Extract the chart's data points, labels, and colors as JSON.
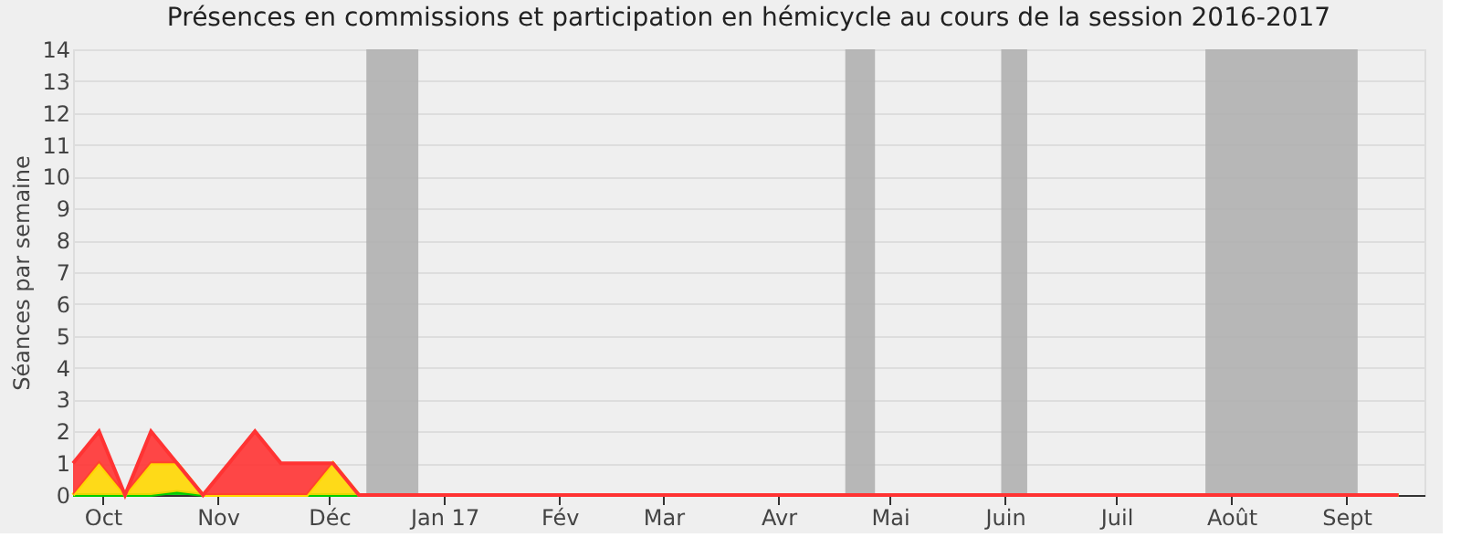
{
  "chart_data": {
    "type": "area",
    "title": "Présences en commissions et participation en hémicycle au cours de la session 2016-2017",
    "ylabel": "Séances par semaine",
    "x": [
      "2016-09-23",
      "2016-09-30",
      "2016-10-07",
      "2016-10-14",
      "2016-10-21",
      "2016-10-28",
      "2016-11-04",
      "2016-11-11",
      "2016-11-18",
      "2016-11-25",
      "2016-12-02",
      "2016-12-09",
      "2016-12-16",
      "2016-12-23",
      "2016-12-30",
      "2017-01-06",
      "2017-01-13",
      "2017-01-20",
      "2017-01-27",
      "2017-02-03",
      "2017-02-10",
      "2017-02-17",
      "2017-02-24",
      "2017-03-03",
      "2017-03-10",
      "2017-03-17",
      "2017-03-24",
      "2017-03-31",
      "2017-04-07",
      "2017-04-14",
      "2017-04-21",
      "2017-04-28",
      "2017-05-05",
      "2017-05-12",
      "2017-05-19",
      "2017-05-26",
      "2017-06-02",
      "2017-06-09",
      "2017-06-16",
      "2017-06-23",
      "2017-06-30",
      "2017-07-07",
      "2017-07-14",
      "2017-07-21",
      "2017-07-28",
      "2017-08-04",
      "2017-08-11",
      "2017-08-18",
      "2017-08-25",
      "2017-09-01",
      "2017-09-08",
      "2017-09-15"
    ],
    "stacked": true,
    "series": [
      {
        "color": "#00cc00",
        "values": [
          0,
          0,
          0,
          0,
          0.1,
          0,
          0,
          0,
          0,
          0,
          0,
          0,
          0,
          0,
          0,
          0,
          0,
          0,
          0,
          0,
          0,
          0,
          0,
          0,
          0,
          0,
          0,
          0,
          0,
          0,
          0,
          0,
          0,
          0,
          0,
          0,
          0,
          0,
          0,
          0,
          0,
          0,
          0,
          0,
          0,
          0,
          0,
          0,
          0,
          0,
          0,
          0
        ]
      },
      {
        "color": "#ffd700",
        "values": [
          0,
          1,
          0,
          1,
          0.9,
          0,
          0,
          0,
          0,
          0,
          1,
          0,
          0,
          0,
          0,
          0,
          0,
          0,
          0,
          0,
          0,
          0,
          0,
          0,
          0,
          0,
          0,
          0,
          0,
          0,
          0,
          0,
          0,
          0,
          0,
          0,
          0,
          0,
          0,
          0,
          0,
          0,
          0,
          0,
          0,
          0,
          0,
          0,
          0,
          0,
          0,
          0
        ]
      },
      {
        "color": "#ff3333",
        "values": [
          1,
          1,
          0,
          1,
          0,
          0,
          1,
          2,
          1,
          1,
          0,
          0,
          0,
          0,
          0,
          0,
          0,
          0,
          0,
          0,
          0,
          0,
          0,
          0,
          0,
          0,
          0,
          0,
          0,
          0,
          0,
          0,
          0,
          0,
          0,
          0,
          0,
          0,
          0,
          0,
          0,
          0,
          0,
          0,
          0,
          0,
          0,
          0,
          0,
          0,
          0,
          0
        ]
      }
    ],
    "bands": [
      {
        "axis": "x",
        "from": "2016-12-11",
        "to": "2016-12-25",
        "color": "#b0b0b0"
      },
      {
        "axis": "x",
        "from": "2017-04-19",
        "to": "2017-04-27",
        "color": "#b0b0b0"
      },
      {
        "axis": "x",
        "from": "2017-05-31",
        "to": "2017-06-07",
        "color": "#b0b0b0"
      },
      {
        "axis": "x",
        "from": "2017-07-25",
        "to": "2017-09-04",
        "color": "#b0b0b0"
      }
    ],
    "xlim": [
      "2016-09-23",
      "2017-09-22"
    ],
    "xticks": [
      {
        "value": "2016-10-01",
        "label": "Oct"
      },
      {
        "value": "2016-11-01",
        "label": "Nov"
      },
      {
        "value": "2016-12-01",
        "label": "Déc"
      },
      {
        "value": "2017-01-01",
        "label": "Jan 17"
      },
      {
        "value": "2017-02-01",
        "label": "Fév"
      },
      {
        "value": "2017-03-01",
        "label": "Mar"
      },
      {
        "value": "2017-04-01",
        "label": "Avr"
      },
      {
        "value": "2017-05-01",
        "label": "Mai"
      },
      {
        "value": "2017-06-01",
        "label": "Juin"
      },
      {
        "value": "2017-07-01",
        "label": "Juil"
      },
      {
        "value": "2017-08-01",
        "label": "Août"
      },
      {
        "value": "2017-09-01",
        "label": "Sept"
      }
    ],
    "ylim": [
      0,
      14
    ],
    "yticks": [
      0,
      1,
      2,
      3,
      4,
      5,
      6,
      7,
      8,
      9,
      10,
      11,
      12,
      13,
      14
    ],
    "grid": "y"
  }
}
